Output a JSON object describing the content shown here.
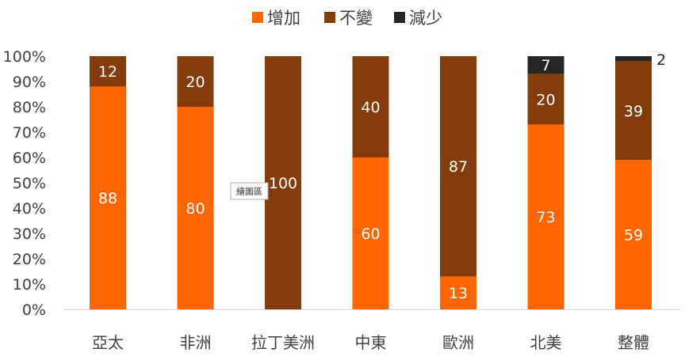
{
  "chart_data": {
    "type": "bar",
    "stacked": true,
    "percent_stacked": true,
    "categories": [
      "亞太",
      "非洲",
      "拉丁美洲",
      "中東",
      "歐洲",
      "北美",
      "整體"
    ],
    "series": [
      {
        "name": "增加",
        "values": [
          88,
          80,
          0,
          60,
          13,
          73,
          59
        ],
        "color": "#FF6600"
      },
      {
        "name": "不變",
        "values": [
          12,
          20,
          100,
          40,
          87,
          20,
          39
        ],
        "color": "#843C0C"
      },
      {
        "name": "減少",
        "values": [
          0,
          0,
          0,
          0,
          0,
          7,
          2
        ],
        "color": "#262626"
      }
    ],
    "ylim": [
      0,
      100
    ],
    "yticks": [
      "0%",
      "10%",
      "20%",
      "30%",
      "40%",
      "50%",
      "60%",
      "70%",
      "80%",
      "90%",
      "100%"
    ],
    "legend_position": "top-center",
    "grid": false,
    "tooltip": "繪圖區"
  }
}
